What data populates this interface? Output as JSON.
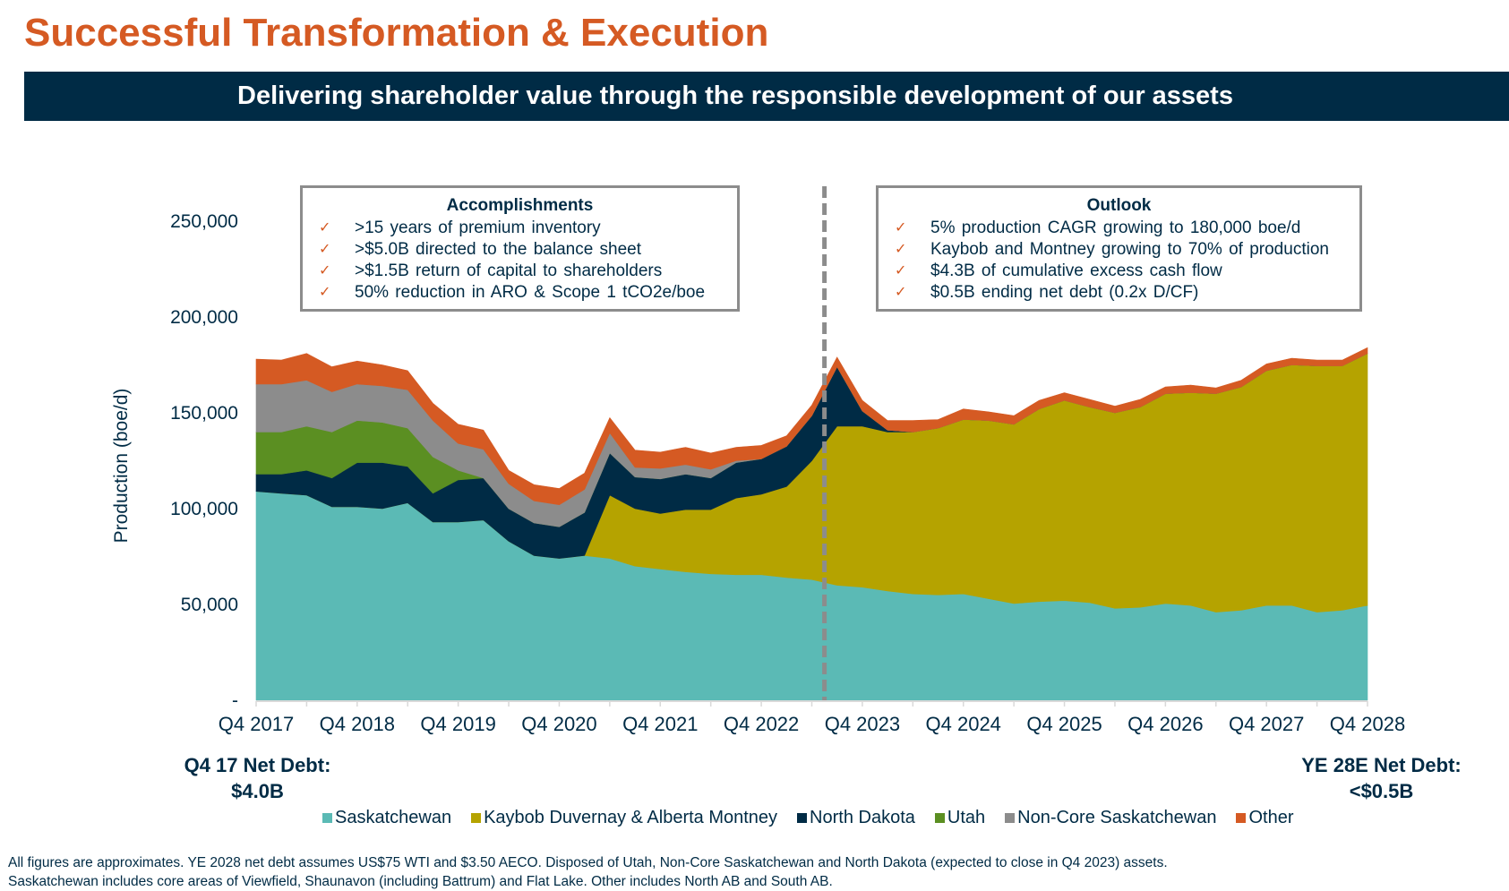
{
  "page": {
    "title": "Successful Transformation & Execution",
    "banner": "Delivering shareholder value through the responsible development of our assets"
  },
  "boxes": {
    "accomplishments": {
      "heading": "Accomplishments",
      "items": [
        ">15 years of premium inventory",
        ">$5.0B directed to the balance sheet",
        ">$1.5B return of capital to shareholders",
        "50% reduction in ARO & Scope 1 tCO2e/boe"
      ]
    },
    "outlook": {
      "heading": "Outlook",
      "items": [
        "5% production CAGR growing to 180,000 boe/d",
        "Kaybob and Montney growing to 70% of production",
        "$4.3B of cumulative excess cash flow",
        "$0.5B ending net debt (0.2x D/CF)"
      ]
    },
    "check_icon": "✓"
  },
  "net_debt": {
    "start_label": "Q4 17 Net Debt:",
    "start_value": "$4.0B",
    "end_label": "YE 28E Net Debt:",
    "end_value": "<$0.5B"
  },
  "footnote": [
    "All figures are approximates. YE 2028 net debt assumes US$75 WTI and $3.50 AECO. Disposed of Utah, Non-Core Saskatchewan and North Dakota (expected to close in Q4 2023) assets.",
    "Saskatchewan includes core areas of Viewfield, Shaunavon (including Battrum) and Flat Lake. Other includes North AB and South AB."
  ],
  "colors": {
    "title": "#D55A23",
    "banner_bg": "#002B45",
    "text": "#002B45"
  },
  "chart_data": {
    "type": "area",
    "stacked": true,
    "title": "",
    "xlabel": "",
    "ylabel": "Production (boe/d)",
    "ylim": [
      0,
      250000
    ],
    "yticks": [
      0,
      50000,
      100000,
      150000,
      200000,
      250000
    ],
    "ytick_labels": [
      "-",
      "50,000",
      "100,000",
      "150,000",
      "200,000",
      "250,000"
    ],
    "x_start": "Q4 2017",
    "x_end": "Q4 2028",
    "x_frequency": "quarterly",
    "xtick_labels": [
      "Q4 2017",
      "Q4 2018",
      "Q4 2019",
      "Q4 2020",
      "Q4 2021",
      "Q4 2022",
      "Q4 2023",
      "Q4 2024",
      "Q4 2025",
      "Q4 2026",
      "Q4 2027",
      "Q4 2028"
    ],
    "xtick_every": 4,
    "grid": false,
    "legend_position": "bottom",
    "annotations": [
      {
        "type": "vertical-dashed-line",
        "at_quarter_index": 22.5,
        "meaning": "actuals vs. outlook divider (mid-2023)"
      }
    ],
    "series": [
      {
        "name": "Saskatchewan",
        "color": "#5BBAB5",
        "values": [
          109000,
          108000,
          107000,
          101000,
          101000,
          100000,
          103000,
          93000,
          93000,
          94000,
          83000,
          75500,
          74000,
          75500,
          74000,
          70000,
          68500,
          67000,
          66000,
          65500,
          65500,
          64000,
          63000,
          60000,
          59000,
          57000,
          55500,
          55000,
          55500,
          53000,
          50500,
          51500,
          52000,
          51000,
          48000,
          48500,
          50500,
          49500,
          46000,
          47000,
          49500,
          49500,
          46000,
          47000,
          49500
        ]
      },
      {
        "name": "Kaybob Duvernay & Alberta Montney",
        "color": "#B5A300",
        "values": [
          0,
          0,
          0,
          0,
          0,
          0,
          0,
          0,
          0,
          0,
          0,
          0,
          0,
          0,
          33000,
          30000,
          29000,
          32500,
          33500,
          40000,
          42000,
          47500,
          62000,
          83000,
          84000,
          83000,
          84500,
          87000,
          91000,
          93000,
          93500,
          100500,
          104500,
          102000,
          102000,
          104500,
          109500,
          111000,
          114000,
          116500,
          122500,
          125500,
          128500,
          127500,
          131500
        ]
      },
      {
        "name": "North Dakota",
        "color": "#002B45",
        "values": [
          9000,
          10000,
          13000,
          15000,
          23000,
          24000,
          19000,
          15000,
          22000,
          22000,
          17000,
          17000,
          16500,
          22500,
          22000,
          16500,
          18000,
          18500,
          16500,
          18500,
          18500,
          21000,
          23500,
          31000,
          8000,
          1000,
          0,
          0,
          0,
          0,
          0,
          0,
          0,
          0,
          0,
          0,
          0,
          0,
          0,
          0,
          0,
          0,
          0,
          0,
          0
        ]
      },
      {
        "name": "Utah",
        "color": "#5B8F22",
        "values": [
          22000,
          22000,
          23000,
          24000,
          22000,
          21000,
          20000,
          19000,
          5000,
          0,
          0,
          0,
          0,
          0,
          0,
          0,
          0,
          0,
          0,
          0,
          0,
          0,
          0,
          0,
          0,
          0,
          0,
          0,
          0,
          0,
          0,
          0,
          0,
          0,
          0,
          0,
          0,
          0,
          0,
          0,
          0,
          0,
          0,
          0,
          0
        ]
      },
      {
        "name": "Non-Core Saskatchewan",
        "color": "#8C8C8C",
        "values": [
          25000,
          25000,
          24000,
          21000,
          19000,
          19000,
          20000,
          19000,
          14000,
          15000,
          13000,
          11500,
          11500,
          12000,
          10500,
          5000,
          5500,
          5000,
          4500,
          1000,
          0,
          0,
          0,
          0,
          0,
          0,
          0,
          0,
          0,
          0,
          0,
          0,
          0,
          0,
          0,
          0,
          0,
          0,
          0,
          0,
          0,
          0,
          0,
          0,
          0
        ]
      },
      {
        "name": "Other",
        "color": "#D55A23",
        "values": [
          13000,
          12500,
          14000,
          13000,
          12000,
          11000,
          10000,
          9000,
          10000,
          10000,
          7000,
          8500,
          8500,
          8500,
          8000,
          9000,
          8500,
          9000,
          8500,
          7000,
          7000,
          5500,
          5500,
          5000,
          5500,
          5000,
          6000,
          4500,
          5500,
          4500,
          4500,
          4500,
          4000,
          4000,
          3500,
          4000,
          3500,
          4000,
          3000,
          3500,
          3500,
          3500,
          3000,
          3000,
          3000
        ]
      }
    ]
  }
}
